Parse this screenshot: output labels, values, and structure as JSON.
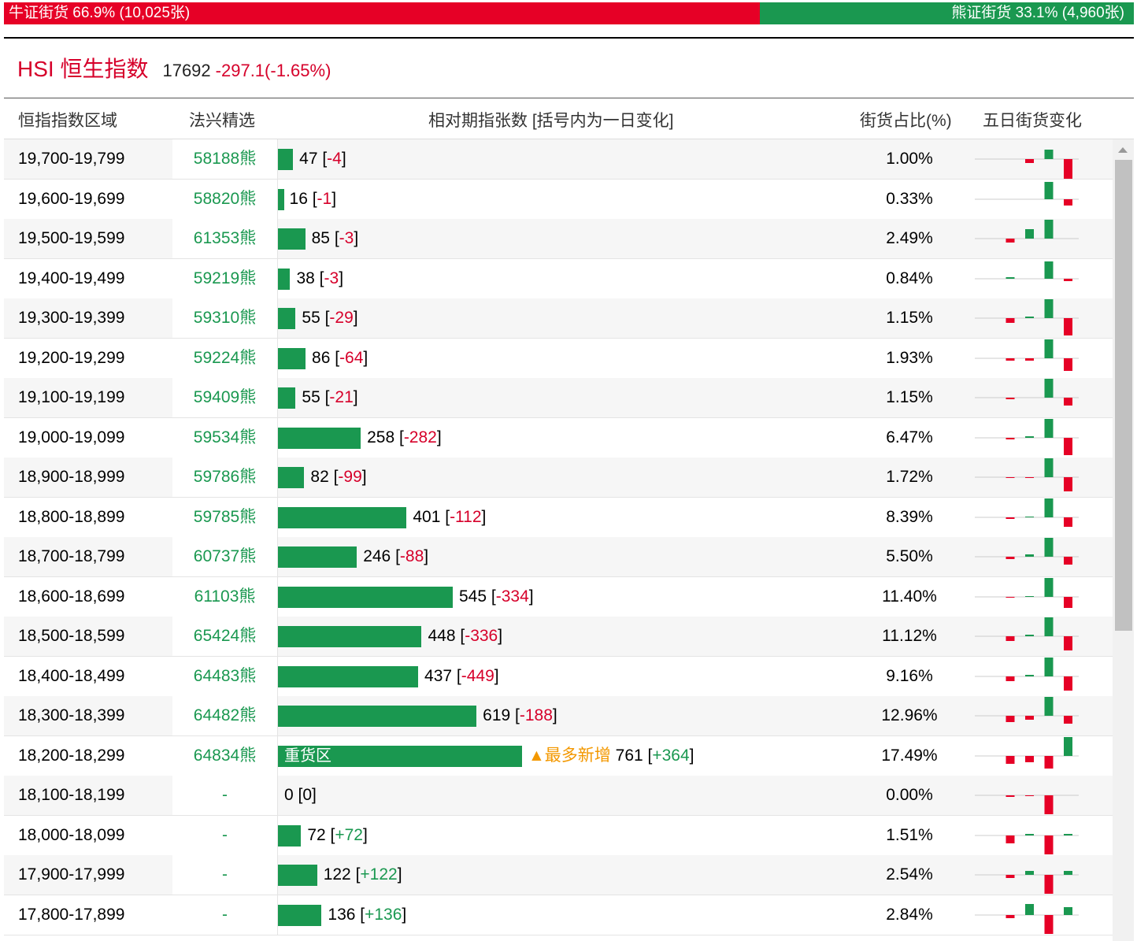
{
  "top_bar": {
    "bull": {
      "label": "牛证街货",
      "percent": 66.9,
      "percent_label": "66.9%",
      "count_label": "(10,025张)"
    },
    "bear": {
      "label": "熊证街货",
      "percent": 33.1,
      "percent_label": "33.1%",
      "count_label": "(4,960张)"
    }
  },
  "header": {
    "title": "HSI 恒生指数",
    "price": "17692",
    "change": "-297.1(-1.65%)"
  },
  "table": {
    "columns": [
      "恒指指数区域",
      "法兴精选",
      "相对期指张数 [括号内为一日变化]",
      "街货占比(%)",
      "五日街货变化"
    ],
    "rows": [
      {
        "range": "19,700-19,799",
        "pick": "58188熊",
        "count": 47,
        "change": "-4",
        "share": "1.00%",
        "five_day": [
          0,
          0,
          -5,
          12,
          -25
        ]
      },
      {
        "range": "19,600-19,699",
        "pick": "58820熊",
        "count": 16,
        "change": "-1",
        "share": "0.33%",
        "five_day": [
          0,
          0,
          0,
          22,
          -8
        ]
      },
      {
        "range": "19,500-19,599",
        "pick": "61353熊",
        "count": 85,
        "change": "-3",
        "share": "2.49%",
        "five_day": [
          0,
          -5,
          12,
          24,
          0
        ]
      },
      {
        "range": "19,400-19,499",
        "pick": "59219熊",
        "count": 38,
        "change": "-3",
        "share": "0.84%",
        "five_day": [
          0,
          2,
          0,
          22,
          -3
        ]
      },
      {
        "range": "19,300-19,399",
        "pick": "59310熊",
        "count": 55,
        "change": "-29",
        "share": "1.15%",
        "five_day": [
          0,
          -6,
          2,
          24,
          -22
        ]
      },
      {
        "range": "19,200-19,299",
        "pick": "59224熊",
        "count": 86,
        "change": "-64",
        "share": "1.93%",
        "five_day": [
          0,
          -3,
          -3,
          24,
          -16
        ]
      },
      {
        "range": "19,100-19,199",
        "pick": "59409熊",
        "count": 55,
        "change": "-21",
        "share": "1.15%",
        "five_day": [
          0,
          -2,
          0,
          24,
          -10
        ]
      },
      {
        "range": "19,000-19,099",
        "pick": "59534熊",
        "count": 258,
        "change": "-282",
        "share": "6.47%",
        "five_day": [
          0,
          -2,
          2,
          24,
          -22
        ]
      },
      {
        "range": "18,900-18,999",
        "pick": "59786熊",
        "count": 82,
        "change": "-99",
        "share": "1.72%",
        "five_day": [
          0,
          -1,
          -1,
          24,
          -18
        ]
      },
      {
        "range": "18,800-18,899",
        "pick": "59785熊",
        "count": 401,
        "change": "-112",
        "share": "8.39%",
        "five_day": [
          0,
          -2,
          1,
          24,
          -12
        ]
      },
      {
        "range": "18,700-18,799",
        "pick": "60737熊",
        "count": 246,
        "change": "-88",
        "share": "5.50%",
        "five_day": [
          0,
          -3,
          3,
          24,
          -10
        ]
      },
      {
        "range": "18,600-18,699",
        "pick": "61103熊",
        "count": 545,
        "change": "-334",
        "share": "11.40%",
        "five_day": [
          0,
          -1,
          1,
          24,
          -14
        ]
      },
      {
        "range": "18,500-18,599",
        "pick": "65424熊",
        "count": 448,
        "change": "-336",
        "share": "11.12%",
        "five_day": [
          0,
          -6,
          2,
          24,
          -18
        ]
      },
      {
        "range": "18,400-18,499",
        "pick": "64483熊",
        "count": 437,
        "change": "-449",
        "share": "9.16%",
        "five_day": [
          0,
          -6,
          2,
          24,
          -18
        ]
      },
      {
        "range": "18,300-18,399",
        "pick": "64482熊",
        "count": 619,
        "change": "-188",
        "share": "12.96%",
        "five_day": [
          0,
          -8,
          -5,
          24,
          -10
        ]
      },
      {
        "range": "18,200-18,299",
        "pick": "64834熊",
        "count": 761,
        "change": "+364",
        "share": "17.49%",
        "five_day": [
          0,
          -10,
          -8,
          -16,
          24
        ],
        "bar_text": "重货区",
        "note": "▲最多新增"
      },
      {
        "range": "18,100-18,199",
        "pick": "-",
        "count": 0,
        "change": "0",
        "share": "0.00%",
        "five_day": [
          0,
          -2,
          -1,
          -24,
          0
        ]
      },
      {
        "range": "18,000-18,099",
        "pick": "-",
        "count": 72,
        "change": "+72",
        "share": "1.51%",
        "five_day": [
          0,
          -10,
          2,
          -24,
          2
        ]
      },
      {
        "range": "17,900-17,999",
        "pick": "-",
        "count": 122,
        "change": "+122",
        "share": "2.54%",
        "five_day": [
          0,
          -4,
          5,
          -24,
          5
        ]
      },
      {
        "range": "17,800-17,899",
        "pick": "-",
        "count": 136,
        "change": "+136",
        "share": "2.84%",
        "five_day": [
          0,
          -4,
          14,
          -24,
          10
        ]
      }
    ]
  }
}
